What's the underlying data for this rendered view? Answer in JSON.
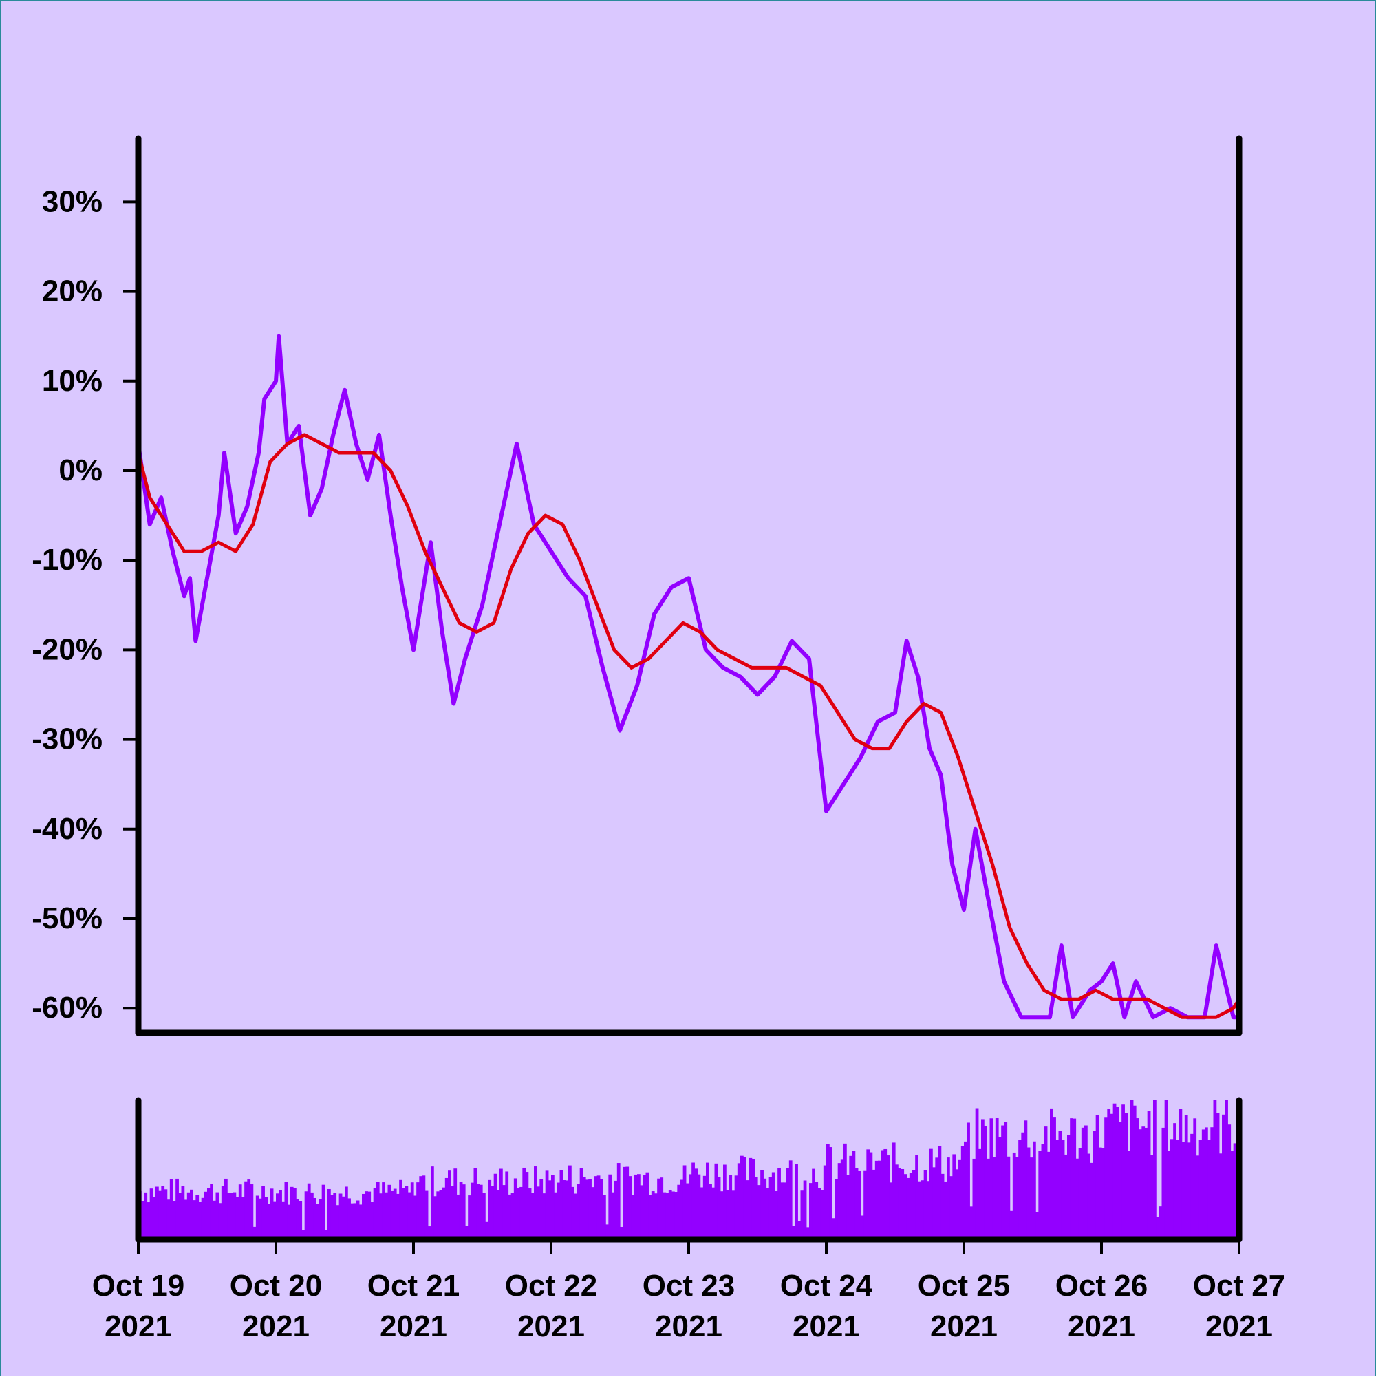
{
  "colors": {
    "background": "#DAC8FF",
    "price_line": "#9300FF",
    "average_line": "#E0000F",
    "volume_bars": "#9300FF",
    "axes": "#000000"
  },
  "chart_data": [
    {
      "type": "line",
      "panel": "price",
      "title": "",
      "xlabel": "",
      "ylabel": "",
      "y_unit": "%",
      "ylim": [
        -62.5,
        37
      ],
      "yticks": [
        30,
        20,
        10,
        0,
        -10,
        -20,
        -30,
        -40,
        -50,
        -60
      ],
      "ytick_labels": [
        "30%",
        "20%",
        "10%",
        "0%",
        "-10%",
        "-20%",
        "-30%",
        "-40%",
        "-50%",
        "-60%"
      ],
      "xlim": [
        "2021-10-19",
        "2021-10-27"
      ],
      "grid": false,
      "legend": "none",
      "series": [
        {
          "role": "price",
          "points": [
            [
              "2021-10-19T00:00",
              3
            ],
            [
              "2021-10-19T02:00",
              -6
            ],
            [
              "2021-10-19T04:00",
              -3
            ],
            [
              "2021-10-19T06:00",
              -9
            ],
            [
              "2021-10-19T08:00",
              -14
            ],
            [
              "2021-10-19T09:00",
              -12
            ],
            [
              "2021-10-19T10:00",
              -19
            ],
            [
              "2021-10-19T12:00",
              -12
            ],
            [
              "2021-10-19T14:00",
              -5
            ],
            [
              "2021-10-19T15:00",
              2
            ],
            [
              "2021-10-19T17:00",
              -7
            ],
            [
              "2021-10-19T19:00",
              -4
            ],
            [
              "2021-10-19T21:00",
              2
            ],
            [
              "2021-10-19T22:00",
              8
            ],
            [
              "2021-10-20T00:00",
              10
            ],
            [
              "2021-10-20T00:30",
              15
            ],
            [
              "2021-10-20T02:00",
              3
            ],
            [
              "2021-10-20T04:00",
              5
            ],
            [
              "2021-10-20T06:00",
              -5
            ],
            [
              "2021-10-20T08:00",
              -2
            ],
            [
              "2021-10-20T10:00",
              4
            ],
            [
              "2021-10-20T12:00",
              9
            ],
            [
              "2021-10-20T14:00",
              3
            ],
            [
              "2021-10-20T16:00",
              -1
            ],
            [
              "2021-10-20T18:00",
              4
            ],
            [
              "2021-10-20T20:00",
              -5
            ],
            [
              "2021-10-20T22:00",
              -13
            ],
            [
              "2021-10-21T00:00",
              -20
            ],
            [
              "2021-10-21T03:00",
              -8
            ],
            [
              "2021-10-21T05:00",
              -18
            ],
            [
              "2021-10-21T07:00",
              -26
            ],
            [
              "2021-10-21T09:00",
              -21
            ],
            [
              "2021-10-21T12:00",
              -15
            ],
            [
              "2021-10-21T15:00",
              -6
            ],
            [
              "2021-10-21T18:00",
              3
            ],
            [
              "2021-10-21T21:00",
              -6
            ],
            [
              "2021-10-22T00:00",
              -9
            ],
            [
              "2021-10-22T03:00",
              -12
            ],
            [
              "2021-10-22T06:00",
              -14
            ],
            [
              "2021-10-22T09:00",
              -22
            ],
            [
              "2021-10-22T12:00",
              -29
            ],
            [
              "2021-10-22T15:00",
              -24
            ],
            [
              "2021-10-22T18:00",
              -16
            ],
            [
              "2021-10-22T21:00",
              -13
            ],
            [
              "2021-10-23T00:00",
              -12
            ],
            [
              "2021-10-23T03:00",
              -20
            ],
            [
              "2021-10-23T06:00",
              -22
            ],
            [
              "2021-10-23T09:00",
              -23
            ],
            [
              "2021-10-23T12:00",
              -25
            ],
            [
              "2021-10-23T15:00",
              -23
            ],
            [
              "2021-10-23T18:00",
              -19
            ],
            [
              "2021-10-23T21:00",
              -21
            ],
            [
              "2021-10-24T00:00",
              -38
            ],
            [
              "2021-10-24T03:00",
              -35
            ],
            [
              "2021-10-24T06:00",
              -32
            ],
            [
              "2021-10-24T09:00",
              -28
            ],
            [
              "2021-10-24T12:00",
              -27
            ],
            [
              "2021-10-24T14:00",
              -19
            ],
            [
              "2021-10-24T16:00",
              -23
            ],
            [
              "2021-10-24T18:00",
              -31
            ],
            [
              "2021-10-24T20:00",
              -34
            ],
            [
              "2021-10-24T22:00",
              -44
            ],
            [
              "2021-10-25T00:00",
              -49
            ],
            [
              "2021-10-25T02:00",
              -40
            ],
            [
              "2021-10-25T04:00",
              -47
            ],
            [
              "2021-10-25T07:00",
              -57
            ],
            [
              "2021-10-25T10:00",
              -61
            ],
            [
              "2021-10-25T13:00",
              -61
            ],
            [
              "2021-10-25T15:00",
              -61
            ],
            [
              "2021-10-25T17:00",
              -53
            ],
            [
              "2021-10-25T19:00",
              -61
            ],
            [
              "2021-10-25T22:00",
              -58
            ],
            [
              "2021-10-26T00:00",
              -57
            ],
            [
              "2021-10-26T02:00",
              -55
            ],
            [
              "2021-10-26T04:00",
              -61
            ],
            [
              "2021-10-26T06:00",
              -57
            ],
            [
              "2021-10-26T09:00",
              -61
            ],
            [
              "2021-10-26T12:00",
              -60
            ],
            [
              "2021-10-26T15:00",
              -61
            ],
            [
              "2021-10-26T18:00",
              -61
            ],
            [
              "2021-10-26T20:00",
              -53
            ],
            [
              "2021-10-26T23:00",
              -61
            ],
            [
              "2021-10-27T00:00",
              -61
            ]
          ]
        },
        {
          "role": "moving-average",
          "points": [
            [
              "2021-10-19T00:00",
              2
            ],
            [
              "2021-10-19T02:00",
              -3
            ],
            [
              "2021-10-19T05:00",
              -6
            ],
            [
              "2021-10-19T08:00",
              -9
            ],
            [
              "2021-10-19T11:00",
              -9
            ],
            [
              "2021-10-19T14:00",
              -8
            ],
            [
              "2021-10-19T17:00",
              -9
            ],
            [
              "2021-10-19T20:00",
              -6
            ],
            [
              "2021-10-19T23:00",
              1
            ],
            [
              "2021-10-20T02:00",
              3
            ],
            [
              "2021-10-20T05:00",
              4
            ],
            [
              "2021-10-20T08:00",
              3
            ],
            [
              "2021-10-20T11:00",
              2
            ],
            [
              "2021-10-20T14:00",
              2
            ],
            [
              "2021-10-20T17:00",
              2
            ],
            [
              "2021-10-20T20:00",
              0
            ],
            [
              "2021-10-20T23:00",
              -4
            ],
            [
              "2021-10-21T02:00",
              -9
            ],
            [
              "2021-10-21T05:00",
              -13
            ],
            [
              "2021-10-21T08:00",
              -17
            ],
            [
              "2021-10-21T11:00",
              -18
            ],
            [
              "2021-10-21T14:00",
              -17
            ],
            [
              "2021-10-21T17:00",
              -11
            ],
            [
              "2021-10-21T20:00",
              -7
            ],
            [
              "2021-10-21T23:00",
              -5
            ],
            [
              "2021-10-22T02:00",
              -6
            ],
            [
              "2021-10-22T05:00",
              -10
            ],
            [
              "2021-10-22T08:00",
              -15
            ],
            [
              "2021-10-22T11:00",
              -20
            ],
            [
              "2021-10-22T14:00",
              -22
            ],
            [
              "2021-10-22T17:00",
              -21
            ],
            [
              "2021-10-22T20:00",
              -19
            ],
            [
              "2021-10-22T23:00",
              -17
            ],
            [
              "2021-10-23T02:00",
              -18
            ],
            [
              "2021-10-23T05:00",
              -20
            ],
            [
              "2021-10-23T08:00",
              -21
            ],
            [
              "2021-10-23T11:00",
              -22
            ],
            [
              "2021-10-23T14:00",
              -22
            ],
            [
              "2021-10-23T17:00",
              -22
            ],
            [
              "2021-10-23T20:00",
              -23
            ],
            [
              "2021-10-23T23:00",
              -24
            ],
            [
              "2021-10-24T02:00",
              -27
            ],
            [
              "2021-10-24T05:00",
              -30
            ],
            [
              "2021-10-24T08:00",
              -31
            ],
            [
              "2021-10-24T11:00",
              -31
            ],
            [
              "2021-10-24T14:00",
              -28
            ],
            [
              "2021-10-24T17:00",
              -26
            ],
            [
              "2021-10-24T20:00",
              -27
            ],
            [
              "2021-10-24T23:00",
              -32
            ],
            [
              "2021-10-25T02:00",
              -38
            ],
            [
              "2021-10-25T05:00",
              -44
            ],
            [
              "2021-10-25T08:00",
              -51
            ],
            [
              "2021-10-25T11:00",
              -55
            ],
            [
              "2021-10-25T14:00",
              -58
            ],
            [
              "2021-10-25T17:00",
              -59
            ],
            [
              "2021-10-25T20:00",
              -59
            ],
            [
              "2021-10-25T23:00",
              -58
            ],
            [
              "2021-10-26T02:00",
              -59
            ],
            [
              "2021-10-26T05:00",
              -59
            ],
            [
              "2021-10-26T08:00",
              -59
            ],
            [
              "2021-10-26T11:00",
              -60
            ],
            [
              "2021-10-26T14:00",
              -61
            ],
            [
              "2021-10-26T17:00",
              -61
            ],
            [
              "2021-10-26T20:00",
              -61
            ],
            [
              "2021-10-26T23:00",
              -60
            ],
            [
              "2021-10-27T00:00",
              -59
            ]
          ]
        }
      ]
    },
    {
      "type": "bar",
      "panel": "volume",
      "title": "",
      "ylabel": "",
      "yaxis_labels": false,
      "xticks": [
        "2021-10-19",
        "2021-10-20",
        "2021-10-21",
        "2021-10-22",
        "2021-10-23",
        "2021-10-24",
        "2021-10-25",
        "2021-10-26",
        "2021-10-27"
      ],
      "xtick_labels": [
        {
          "line1": "Oct 19",
          "line2": "2021"
        },
        {
          "line1": "Oct 20",
          "line2": "2021"
        },
        {
          "line1": "Oct 21",
          "line2": "2021"
        },
        {
          "line1": "Oct 22",
          "line2": "2021"
        },
        {
          "line1": "Oct 23",
          "line2": "2021"
        },
        {
          "line1": "Oct 24",
          "line2": "2021"
        },
        {
          "line1": "Oct 25",
          "line2": "2021"
        },
        {
          "line1": "Oct 26",
          "line2": "2021"
        },
        {
          "line1": "Oct 27",
          "line2": "2021"
        }
      ],
      "volume_level_by_day": [
        {
          "day": "2021-10-19",
          "relative_level": 0.35
        },
        {
          "day": "2021-10-20",
          "relative_level": 0.34
        },
        {
          "day": "2021-10-21",
          "relative_level": 0.42
        },
        {
          "day": "2021-10-22",
          "relative_level": 0.44
        },
        {
          "day": "2021-10-23",
          "relative_level": 0.48
        },
        {
          "day": "2021-10-24",
          "relative_level": 0.55
        },
        {
          "day": "2021-10-25",
          "relative_level": 0.75
        },
        {
          "day": "2021-10-26",
          "relative_level": 0.82
        }
      ]
    }
  ]
}
